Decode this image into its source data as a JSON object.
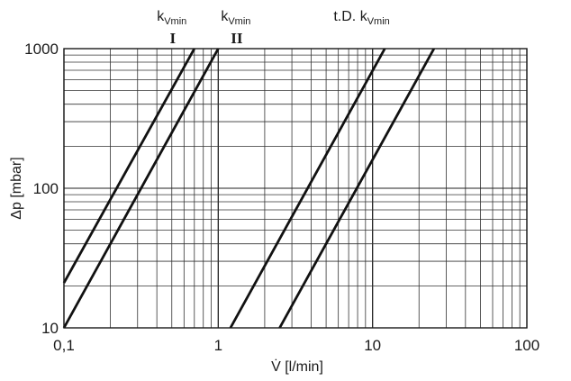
{
  "chart_data": {
    "type": "line",
    "title": "",
    "xlabel": "V̇ [l/min]",
    "ylabel": "Δp [mbar]",
    "x_scale": "log",
    "y_scale": "log",
    "xlim": [
      0.1,
      100
    ],
    "ylim": [
      10,
      1000
    ],
    "x_ticks": [
      "0,1",
      "1",
      "10",
      "100"
    ],
    "y_ticks": [
      "10",
      "100",
      "1000"
    ],
    "x_tick_values": [
      0.1,
      1,
      10,
      100
    ],
    "y_tick_values": [
      10,
      100,
      1000
    ],
    "grid": true,
    "annotations": [
      {
        "text": "k",
        "sub": "Vmin",
        "roman": "I",
        "x": 0.5
      },
      {
        "text": "k",
        "sub": "Vmin",
        "roman": "II",
        "x": 1.3
      },
      {
        "text": "t.D. k",
        "sub": "Vmin",
        "roman": "",
        "x": 8.5
      }
    ],
    "series": [
      {
        "points": [
          [
            0.1,
            21
          ],
          [
            0.7,
            1000
          ]
        ]
      },
      {
        "points": [
          [
            0.1,
            10
          ],
          [
            1.0,
            1000
          ]
        ]
      },
      {
        "points": [
          [
            1.2,
            10
          ],
          [
            12.0,
            1000
          ]
        ]
      },
      {
        "points": [
          [
            2.5,
            10
          ],
          [
            25.0,
            1000
          ]
        ]
      }
    ],
    "line_color": "#111111",
    "grid_color": "#333333"
  }
}
